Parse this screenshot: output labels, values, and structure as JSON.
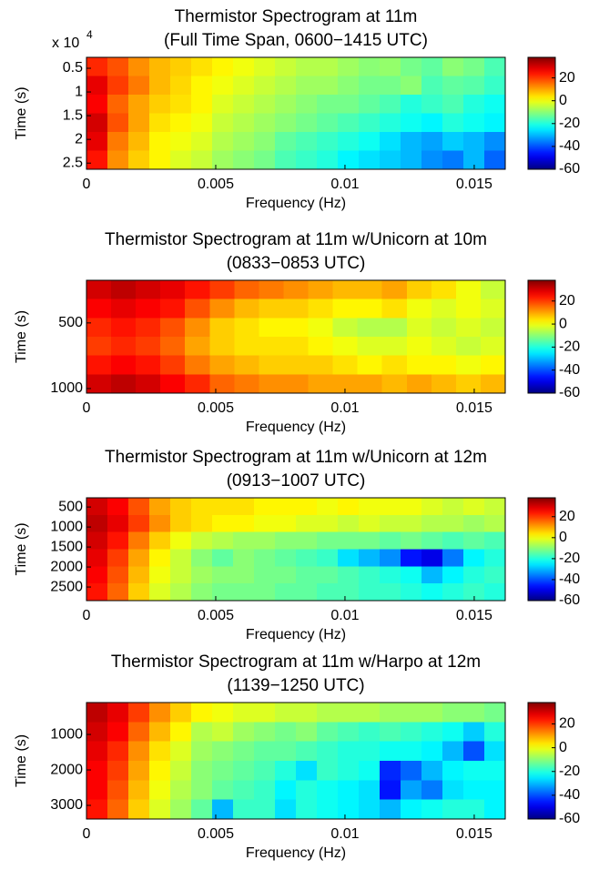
{
  "chart_data": [
    {
      "type": "heatmap",
      "title": [
        "Thermistor Spectrogram at 11m",
        "(Full Time Span, 0600−1415 UTC)"
      ],
      "x_label": "Frequency (Hz)",
      "y_label": "Time (s)",
      "y_multiplier": "x 10",
      "y_multiplier_exponent": "4",
      "xlim": [
        0,
        0.0162
      ],
      "xticks": [
        0,
        0.005,
        0.01,
        0.015
      ],
      "ylim": [
        2700,
        26300
      ],
      "y_direction": "reverse",
      "yticks": [
        {
          "value": 5000,
          "label": "0.5"
        },
        {
          "value": 10000,
          "label": "1"
        },
        {
          "value": 15000,
          "label": "1.5"
        },
        {
          "value": 20000,
          "label": "2"
        },
        {
          "value": 25000,
          "label": "2.5"
        }
      ],
      "colormap": "jet",
      "clim": [
        -60,
        38
      ],
      "cticks": [
        20,
        0,
        -20,
        -40,
        -60
      ],
      "z": [
        [
          22,
          18,
          12,
          8,
          6,
          4,
          2,
          0,
          -2,
          -4,
          -6,
          -6,
          -8,
          -10,
          -9,
          -12,
          -14,
          -10,
          -12,
          -16
        ],
        [
          28,
          20,
          14,
          8,
          5,
          2,
          0,
          -2,
          -4,
          -6,
          -8,
          -8,
          -10,
          -12,
          -12,
          -10,
          -16,
          -14,
          -15,
          -18
        ],
        [
          26,
          16,
          10,
          6,
          4,
          2,
          -2,
          -4,
          -6,
          -8,
          -10,
          -12,
          -12,
          -14,
          -16,
          -20,
          -18,
          -16,
          -20,
          -22
        ],
        [
          30,
          18,
          10,
          4,
          2,
          0,
          -4,
          -6,
          -8,
          -10,
          -12,
          -14,
          -16,
          -18,
          -20,
          -22,
          -24,
          -20,
          -22,
          -24
        ],
        [
          28,
          14,
          8,
          2,
          0,
          -2,
          -6,
          -8,
          -10,
          -14,
          -16,
          -18,
          -20,
          -22,
          -26,
          -30,
          -32,
          -28,
          -30,
          -34
        ],
        [
          24,
          12,
          6,
          2,
          -2,
          -4,
          -8,
          -10,
          -12,
          -16,
          -18,
          -20,
          -24,
          -26,
          -28,
          -30,
          -34,
          -36,
          -30,
          -38
        ]
      ]
    },
    {
      "type": "heatmap",
      "title": [
        "Thermistor Spectrogram at 11m w/Unicorn at 10m",
        "(0833−0853 UTC)"
      ],
      "x_label": "Frequency (Hz)",
      "y_label": "Time (s)",
      "xlim": [
        0,
        0.0162
      ],
      "xticks": [
        0,
        0.005,
        0.01,
        0.015
      ],
      "ylim": [
        175,
        1035
      ],
      "y_direction": "reverse",
      "yticks": [
        500,
        1000
      ],
      "colormap": "jet",
      "clim": [
        -60,
        38
      ],
      "cticks": [
        20,
        0,
        -20,
        -40,
        -60
      ],
      "z": [
        [
          30,
          32,
          30,
          28,
          24,
          20,
          16,
          14,
          12,
          10,
          8,
          8,
          10,
          6,
          4,
          0,
          -4
        ],
        [
          26,
          28,
          26,
          24,
          18,
          12,
          8,
          6,
          6,
          4,
          2,
          2,
          4,
          0,
          -2,
          0,
          -2
        ],
        [
          22,
          24,
          22,
          18,
          12,
          6,
          4,
          2,
          2,
          0,
          -4,
          -6,
          -6,
          -2,
          -4,
          -2,
          -4
        ],
        [
          20,
          22,
          20,
          16,
          10,
          6,
          4,
          4,
          4,
          2,
          0,
          -2,
          -2,
          0,
          -2,
          -4,
          -2
        ],
        [
          24,
          26,
          24,
          20,
          14,
          10,
          8,
          6,
          6,
          6,
          4,
          2,
          4,
          2,
          2,
          0,
          2
        ],
        [
          30,
          32,
          30,
          26,
          22,
          16,
          14,
          12,
          12,
          10,
          10,
          10,
          8,
          10,
          8,
          6,
          8
        ]
      ]
    },
    {
      "type": "heatmap",
      "title": [
        "Thermistor Spectrogram at 11m w/Unicorn at 12m",
        "(0913−1007 UTC)"
      ],
      "x_label": "Frequency (Hz)",
      "y_label": "Time (s)",
      "xlim": [
        0,
        0.0162
      ],
      "xticks": [
        0,
        0.005,
        0.01,
        0.015
      ],
      "ylim": [
        270,
        2840
      ],
      "y_direction": "reverse",
      "yticks": [
        500,
        1000,
        1500,
        2000,
        2500
      ],
      "colormap": "jet",
      "clim": [
        -60,
        38
      ],
      "cticks": [
        20,
        0,
        -20,
        -40,
        -60
      ],
      "z": [
        [
          30,
          26,
          18,
          10,
          6,
          4,
          4,
          4,
          2,
          2,
          2,
          0,
          2,
          0,
          0,
          0,
          -2,
          -4,
          -2,
          -4
        ],
        [
          32,
          28,
          20,
          12,
          6,
          4,
          2,
          2,
          0,
          0,
          -2,
          -2,
          -4,
          -2,
          -4,
          -4,
          -6,
          -6,
          -8,
          -6
        ],
        [
          30,
          24,
          14,
          6,
          0,
          -4,
          -6,
          -8,
          -8,
          -10,
          -10,
          -12,
          -12,
          -12,
          -14,
          -12,
          -14,
          -16,
          -14,
          -16
        ],
        [
          28,
          20,
          10,
          2,
          -4,
          -10,
          -14,
          -10,
          -12,
          -14,
          -16,
          -18,
          -26,
          -30,
          -34,
          -46,
          -50,
          -36,
          -24,
          -20
        ],
        [
          26,
          18,
          8,
          0,
          -4,
          -8,
          -10,
          -10,
          -12,
          -12,
          -14,
          -14,
          -16,
          -18,
          -20,
          -22,
          -30,
          -24,
          -20,
          -18
        ],
        [
          24,
          16,
          6,
          -2,
          -6,
          -10,
          -12,
          -12,
          -12,
          -14,
          -14,
          -16,
          -16,
          -18,
          -18,
          -20,
          -22,
          -20,
          -18,
          -20
        ]
      ]
    },
    {
      "type": "heatmap",
      "title": [
        "Thermistor Spectrogram at 11m w/Harpo at 12m",
        "(1139−1250 UTC)"
      ],
      "x_label": "Frequency (Hz)",
      "y_label": "Time (s)",
      "xlim": [
        0,
        0.0162
      ],
      "xticks": [
        0,
        0.005,
        0.01,
        0.015
      ],
      "ylim": [
        100,
        3385
      ],
      "y_direction": "reverse",
      "yticks": [
        1000,
        2000,
        3000
      ],
      "colormap": "jet",
      "clim": [
        -60,
        38
      ],
      "cticks": [
        20,
        0,
        -20,
        -40,
        -60
      ],
      "z": [
        [
          32,
          28,
          20,
          12,
          6,
          2,
          0,
          -2,
          -2,
          -4,
          -4,
          -6,
          -6,
          -6,
          -8,
          -8,
          -8,
          -10,
          -10,
          -12
        ],
        [
          30,
          26,
          16,
          8,
          2,
          -6,
          -4,
          -8,
          -10,
          -12,
          -10,
          -14,
          -16,
          -18,
          -16,
          -18,
          -20,
          -22,
          -28,
          -20
        ],
        [
          28,
          22,
          12,
          4,
          -2,
          -8,
          -10,
          -12,
          -14,
          -14,
          -16,
          -18,
          -20,
          -20,
          -22,
          -22,
          -24,
          -30,
          -40,
          -26
        ],
        [
          26,
          20,
          10,
          2,
          -4,
          -10,
          -12,
          -14,
          -16,
          -20,
          -26,
          -18,
          -20,
          -22,
          -44,
          -38,
          -30,
          -24,
          -22,
          -22
        ],
        [
          26,
          18,
          8,
          0,
          -6,
          -10,
          -14,
          -16,
          -18,
          -24,
          -20,
          -22,
          -24,
          -26,
          -46,
          -32,
          -36,
          -26,
          -24,
          -24
        ],
        [
          24,
          16,
          6,
          -2,
          -8,
          -14,
          -30,
          -18,
          -18,
          -26,
          -20,
          -22,
          -24,
          -26,
          -30,
          -24,
          -22,
          -20,
          -20,
          -24
        ]
      ]
    }
  ]
}
